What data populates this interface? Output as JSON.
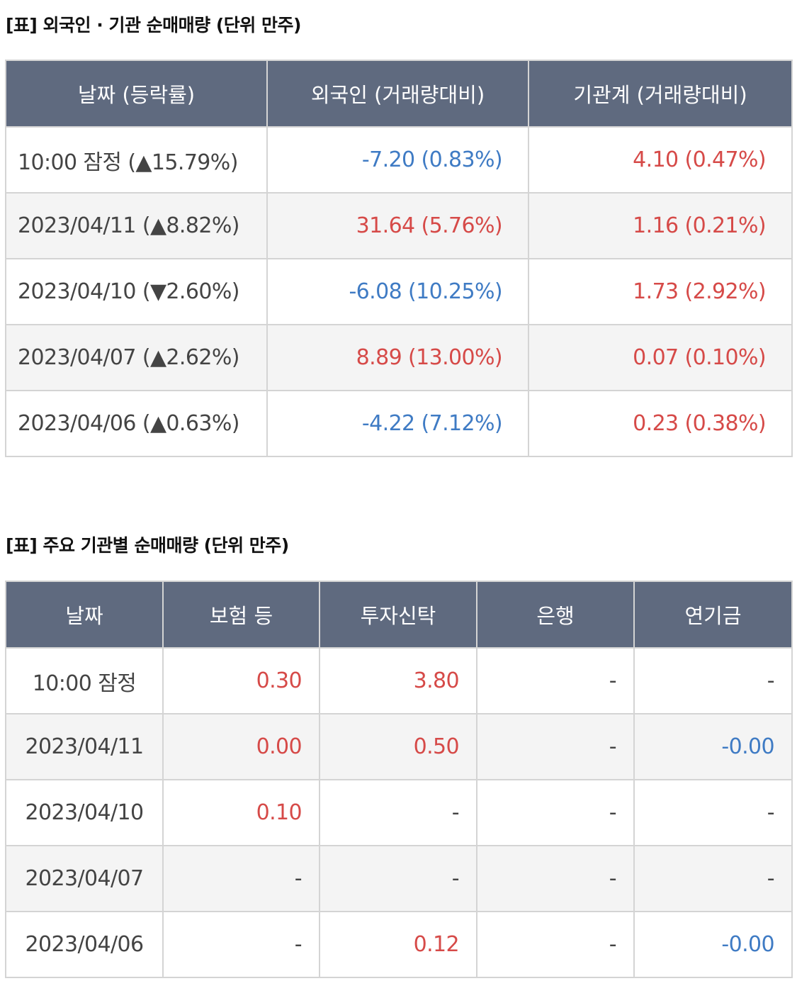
{
  "colors": {
    "header_bg": "#5f6a7f",
    "positive": "#d64a48",
    "negative": "#3f7bc4",
    "alt_row_bg": "#f4f4f4",
    "border": "#d4d4d4"
  },
  "table1": {
    "caption": "[표] 외국인 · 기관 순매매량 (단위 만주)",
    "headers": [
      "날짜 (등락률)",
      "외국인 (거래량대비)",
      "기관계 (거래량대비)"
    ],
    "rows": [
      {
        "date": "10:00 잠정 (▲15.79%)",
        "foreign": "-7.20 (0.83%)",
        "institution": "4.10 (0.47%)"
      },
      {
        "date": "2023/04/11 (▲8.82%)",
        "foreign": "31.64 (5.76%)",
        "institution": "1.16 (0.21%)"
      },
      {
        "date": "2023/04/10 (▼2.60%)",
        "foreign": "-6.08 (10.25%)",
        "institution": "1.73 (2.92%)"
      },
      {
        "date": "2023/04/07 (▲2.62%)",
        "foreign": "8.89 (13.00%)",
        "institution": "0.07 (0.10%)"
      },
      {
        "date": "2023/04/06 (▲0.63%)",
        "foreign": "-4.22 (7.12%)",
        "institution": "0.23 (0.38%)"
      }
    ]
  },
  "table2": {
    "caption": "[표] 주요 기관별 순매매량 (단위 만주)",
    "headers": [
      "날짜",
      "보험 등",
      "투자신탁",
      "은행",
      "연기금"
    ],
    "rows": [
      {
        "date": "10:00 잠정",
        "insurance": "0.30",
        "trust": "3.80",
        "bank": "-",
        "pension": "-"
      },
      {
        "date": "2023/04/11",
        "insurance": "0.00",
        "trust": "0.50",
        "bank": "-",
        "pension": "-0.00"
      },
      {
        "date": "2023/04/10",
        "insurance": "0.10",
        "trust": "-",
        "bank": "-",
        "pension": "-"
      },
      {
        "date": "2023/04/07",
        "insurance": "-",
        "trust": "-",
        "bank": "-",
        "pension": "-"
      },
      {
        "date": "2023/04/06",
        "insurance": "-",
        "trust": "0.12",
        "bank": "-",
        "pension": "-0.00"
      }
    ]
  }
}
